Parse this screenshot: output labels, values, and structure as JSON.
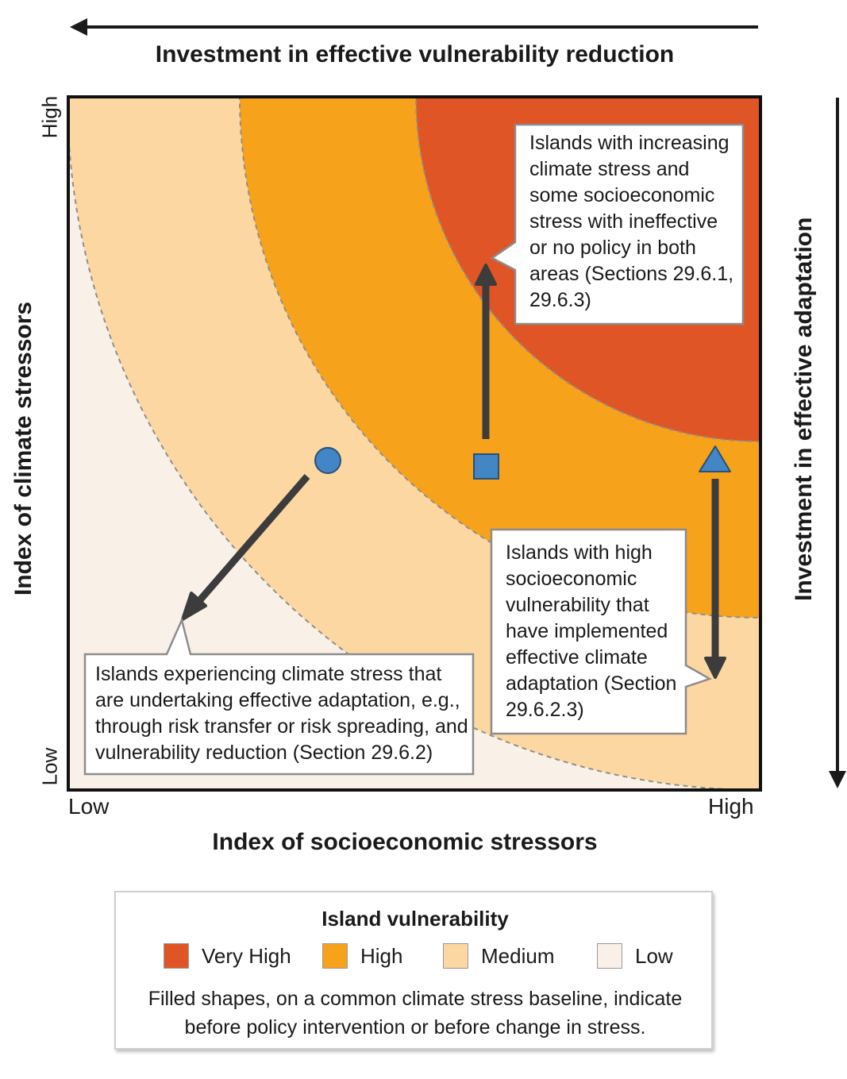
{
  "top_axis": {
    "title": "Investment in effective vulnerability reduction",
    "direction": "right-to-left"
  },
  "right_axis": {
    "title": "Investment in effective adaptation",
    "direction": "top-to-bottom"
  },
  "x_axis": {
    "title": "Index of socioeconomic stressors",
    "low_label": "Low",
    "high_label": "High"
  },
  "y_axis": {
    "title": "Index of climate stressors",
    "low_label": "Low",
    "high_label": "High"
  },
  "zones": [
    {
      "name": "Very High",
      "color": "#e05525"
    },
    {
      "name": "High",
      "color": "#f7a21b"
    },
    {
      "name": "Medium",
      "color": "#fdd7a1"
    },
    {
      "name": "Low",
      "color": "#f9f1e7"
    }
  ],
  "markers": [
    {
      "shape": "circle",
      "color": "#4286c6",
      "arrow": "down-left"
    },
    {
      "shape": "square",
      "color": "#4286c6",
      "arrow": "up"
    },
    {
      "shape": "triangle",
      "color": "#4286c6",
      "arrow": "down"
    }
  ],
  "callouts": {
    "increasing_stress": {
      "lines": [
        "Islands with increasing",
        "climate stress and",
        "some socioeconomic",
        "stress with ineffective",
        "or no policy in both",
        "areas (Sections 29.6.1,",
        "29.6.3)"
      ]
    },
    "high_socioeconomic": {
      "lines": [
        "Islands with high",
        "socioeconomic",
        "vulnerability that",
        "have implemented",
        "effective climate",
        "adaptation (Section",
        "29.6.2.3)"
      ]
    },
    "effective_adaptation": {
      "lines": [
        "Islands experiencing climate stress that",
        "are undertaking effective adaptation, e.g.,",
        "through risk transfer or risk spreading, and",
        "vulnerability reduction (Section 29.6.2)"
      ]
    }
  },
  "legend": {
    "title": "Island vulnerability",
    "items": [
      {
        "label": "Very High",
        "color": "#e05525"
      },
      {
        "label": "High",
        "color": "#f7a21b"
      },
      {
        "label": "Medium",
        "color": "#fdd7a1"
      },
      {
        "label": "Low",
        "color": "#f9f1e7"
      }
    ],
    "note_lines": [
      "Filled shapes, on a common climate stress baseline, indicate",
      "before policy intervention or before change in stress."
    ]
  }
}
